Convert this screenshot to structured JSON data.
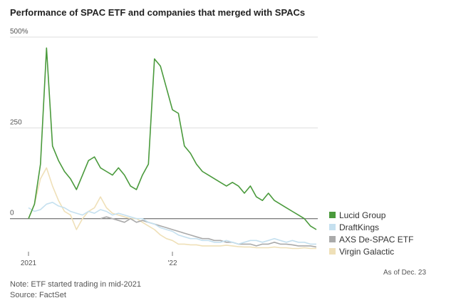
{
  "chart_data": {
    "type": "line",
    "title": "Performance of SPAC ETF and companies that merged with SPACs",
    "categories": [
      "2021",
      null,
      null,
      null,
      null,
      null,
      null,
      null,
      null,
      null,
      null,
      null,
      null,
      null,
      null,
      null,
      null,
      null,
      null,
      null,
      null,
      null,
      null,
      null,
      "'22",
      null,
      null,
      null,
      null,
      null,
      null,
      null,
      null,
      null,
      null,
      null,
      null,
      null,
      null,
      null,
      null,
      null,
      null,
      null,
      null,
      null,
      null,
      null,
      null
    ],
    "series": [
      {
        "name": "Virgin Galactic",
        "color": "#efe0b8",
        "values": [
          0,
          40,
          110,
          140,
          90,
          50,
          20,
          10,
          -30,
          0,
          20,
          30,
          60,
          30,
          15,
          10,
          5,
          0,
          0,
          -10,
          -20,
          -30,
          -45,
          -55,
          -60,
          -70,
          -70,
          -72,
          -72,
          -75,
          -75,
          -75,
          -75,
          -73,
          -75,
          -77,
          -78,
          -78,
          -80,
          -80,
          -80,
          -78,
          -80,
          -80,
          -82,
          -82,
          -80,
          -82,
          -82
        ]
      },
      {
        "name": "AXS De-SPAC ETF",
        "color": "#aaaaaa",
        "values": [
          null,
          null,
          null,
          null,
          null,
          null,
          null,
          null,
          null,
          null,
          null,
          null,
          0,
          5,
          0,
          -5,
          -10,
          0,
          -10,
          -5,
          -10,
          -15,
          -20,
          -25,
          -30,
          -35,
          -40,
          -45,
          -50,
          -55,
          -55,
          -60,
          -60,
          -65,
          -65,
          -70,
          -70,
          -70,
          -75,
          -70,
          -70,
          -65,
          -70,
          -70,
          -72,
          -75,
          -75,
          -75,
          -78
        ]
      },
      {
        "name": "DraftKings",
        "color": "#c5e0ef",
        "values": [
          30,
          20,
          25,
          40,
          45,
          35,
          30,
          20,
          15,
          10,
          20,
          15,
          25,
          20,
          10,
          15,
          10,
          5,
          0,
          0,
          -10,
          -15,
          -25,
          -30,
          -35,
          -45,
          -50,
          -55,
          -55,
          -60,
          -60,
          -65,
          -65,
          -60,
          -65,
          -70,
          -65,
          -60,
          -60,
          -65,
          -60,
          -55,
          -60,
          -65,
          -60,
          -65,
          -65,
          -70,
          -70
        ]
      },
      {
        "name": "Lucid Group",
        "color": "#4a9a3c",
        "values": [
          0,
          40,
          150,
          470,
          200,
          160,
          130,
          110,
          80,
          120,
          160,
          170,
          140,
          130,
          120,
          140,
          120,
          90,
          80,
          120,
          150,
          440,
          420,
          360,
          300,
          290,
          200,
          180,
          150,
          130,
          120,
          110,
          100,
          90,
          100,
          90,
          70,
          90,
          60,
          50,
          70,
          50,
          40,
          30,
          20,
          10,
          0,
          -20,
          -30
        ]
      }
    ],
    "legend_order": [
      "Lucid Group",
      "DraftKings",
      "AXS De-SPAC ETF",
      "Virgin Galactic"
    ],
    "ylim": [
      -85,
      500
    ],
    "yticks": [
      {
        "value": 500,
        "label": "500%"
      },
      250,
      0
    ],
    "grid": true,
    "annotation": "As of Dec. 23",
    "note": "Note: ETF started trading in mid-2021",
    "source": "Source: FactSet"
  }
}
